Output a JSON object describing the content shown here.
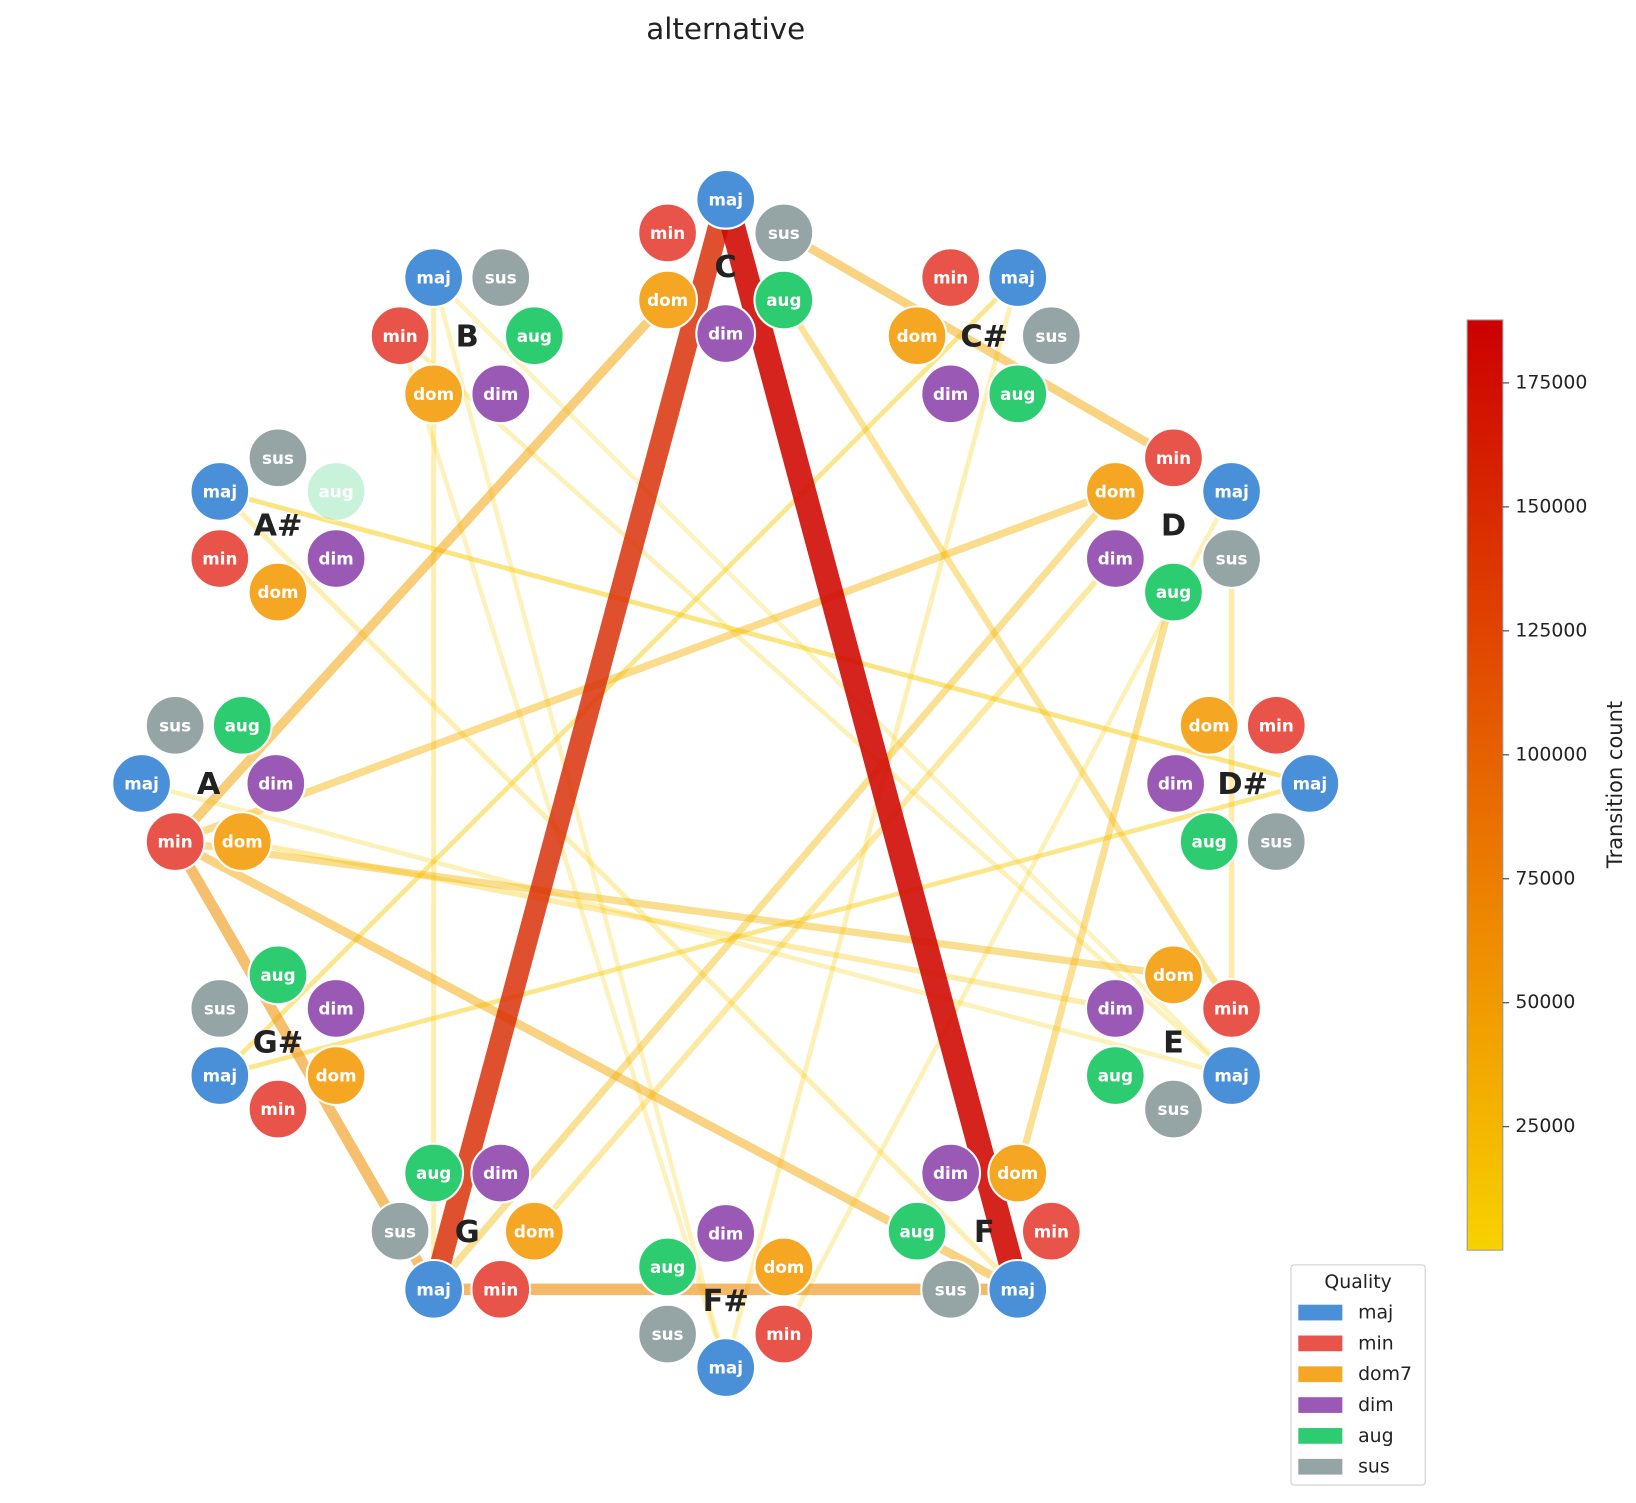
{
  "title": "alternative",
  "keys": [
    {
      "label": "C",
      "nodes": [
        "maj",
        "min",
        "dom",
        "dim",
        "aug",
        "sus"
      ]
    },
    {
      "label": "C#",
      "nodes": [
        "maj",
        "min",
        "dom",
        "dim",
        "aug",
        "sus"
      ]
    },
    {
      "label": "D",
      "nodes": [
        "maj",
        "min",
        "dom",
        "dim",
        "aug",
        "sus"
      ]
    },
    {
      "label": "D#",
      "nodes": [
        "maj",
        "min",
        "dom",
        "dim",
        "aug",
        "sus"
      ]
    },
    {
      "label": "E",
      "nodes": [
        "maj",
        "min",
        "dom",
        "dim",
        "aug",
        "sus"
      ]
    },
    {
      "label": "F",
      "nodes": [
        "maj",
        "min",
        "dom",
        "dim",
        "aug",
        "sus"
      ]
    },
    {
      "label": "F#",
      "nodes": [
        "maj",
        "min",
        "dom",
        "dim",
        "aug",
        "sus"
      ]
    },
    {
      "label": "G",
      "nodes": [
        "maj",
        "min",
        "dom",
        "dim",
        "aug",
        "sus"
      ]
    },
    {
      "label": "G#",
      "nodes": [
        "maj",
        "min",
        "dom",
        "dim",
        "aug",
        "sus"
      ]
    },
    {
      "label": "A",
      "nodes": [
        "maj",
        "min",
        "dom",
        "dim",
        "aug",
        "sus"
      ]
    },
    {
      "label": "A#",
      "nodes": [
        "maj",
        "min",
        "dom",
        "dim",
        "aug",
        "sus"
      ],
      "faded": [
        4
      ]
    },
    {
      "label": "B",
      "nodes": [
        "maj",
        "min",
        "dom",
        "dim",
        "aug",
        "sus"
      ]
    }
  ],
  "edges": [
    {
      "from": [
        0,
        0
      ],
      "to": [
        5,
        0
      ],
      "count": 180000
    },
    {
      "from": [
        0,
        0
      ],
      "to": [
        7,
        0
      ],
      "count": 150000
    },
    {
      "from": [
        7,
        0
      ],
      "to": [
        5,
        0
      ],
      "count": 65000
    },
    {
      "from": [
        9,
        1
      ],
      "to": [
        7,
        0
      ],
      "count": 60000
    },
    {
      "from": [
        9,
        1
      ],
      "to": [
        0,
        2
      ],
      "count": 45000
    },
    {
      "from": [
        9,
        1
      ],
      "to": [
        5,
        0
      ],
      "count": 40000
    },
    {
      "from": [
        0,
        5
      ],
      "to": [
        2,
        1
      ],
      "count": 40000
    },
    {
      "from": [
        9,
        1
      ],
      "to": [
        2,
        2
      ],
      "count": 30000
    },
    {
      "from": [
        9,
        1
      ],
      "to": [
        4,
        2
      ],
      "count": 28000
    },
    {
      "from": [
        7,
        0
      ],
      "to": [
        2,
        2
      ],
      "count": 25000
    },
    {
      "from": [
        2,
        4
      ],
      "to": [
        5,
        2
      ],
      "count": 25000
    },
    {
      "from": [
        0,
        4
      ],
      "to": [
        4,
        1
      ],
      "count": 20000
    },
    {
      "from": [
        7,
        2
      ],
      "to": [
        2,
        3
      ],
      "count": 15000
    },
    {
      "from": [
        9,
        2
      ],
      "to": [
        4,
        3
      ],
      "count": 12000
    },
    {
      "from": [
        2,
        5
      ],
      "to": [
        4,
        1
      ],
      "count": 12000
    },
    {
      "from": [
        11,
        0
      ],
      "to": [
        7,
        0
      ],
      "count": 8000
    },
    {
      "from": [
        10,
        0
      ],
      "to": [
        5,
        0
      ],
      "count": 8000
    },
    {
      "from": [
        3,
        0
      ],
      "to": [
        10,
        0
      ],
      "count": 7000
    },
    {
      "from": [
        1,
        0
      ],
      "to": [
        6,
        0
      ],
      "count": 6000
    },
    {
      "from": [
        8,
        0
      ],
      "to": [
        3,
        0
      ],
      "count": 6000
    },
    {
      "from": [
        11,
        1
      ],
      "to": [
        4,
        0
      ],
      "count": 5000
    },
    {
      "from": [
        6,
        1
      ],
      "to": [
        2,
        0
      ],
      "count": 5000
    },
    {
      "from": [
        8,
        0
      ],
      "to": [
        1,
        0
      ],
      "count": 5000
    },
    {
      "from": [
        10,
        0
      ],
      "to": [
        3,
        0
      ],
      "count": 5000
    },
    {
      "from": [
        9,
        0
      ],
      "to": [
        4,
        0
      ],
      "count": 5000
    },
    {
      "from": [
        11,
        0
      ],
      "to": [
        6,
        0
      ],
      "count": 4000
    },
    {
      "from": [
        1,
        0
      ],
      "to": [
        8,
        0
      ],
      "count": 4000
    },
    {
      "from": [
        6,
        0
      ],
      "to": [
        11,
        1
      ],
      "count": 4000
    },
    {
      "from": [
        4,
        0
      ],
      "to": [
        11,
        0
      ],
      "count": 3000
    },
    {
      "from": [
        3,
        0
      ],
      "to": [
        8,
        0
      ],
      "count": 3000
    }
  ],
  "colorbar": {
    "label": "Transition count",
    "clim": [
      100,
      187700
    ],
    "ticks": [
      25000,
      50000,
      75000,
      100000,
      125000,
      150000,
      175000
    ],
    "colormap": [
      "#f8d200",
      "#ee8c00",
      "#e04400",
      "#cc0000"
    ]
  },
  "legend": {
    "title": "Quality",
    "entries": [
      {
        "label": "maj",
        "color": "#4a90d9"
      },
      {
        "label": "min",
        "color": "#e8534a"
      },
      {
        "label": "dom7",
        "color": "#f5a623"
      },
      {
        "label": "dim",
        "color": "#9b59b6"
      },
      {
        "label": "aug",
        "color": "#2ecc71"
      },
      {
        "label": "sus",
        "color": "#95a5a6"
      }
    ]
  }
}
